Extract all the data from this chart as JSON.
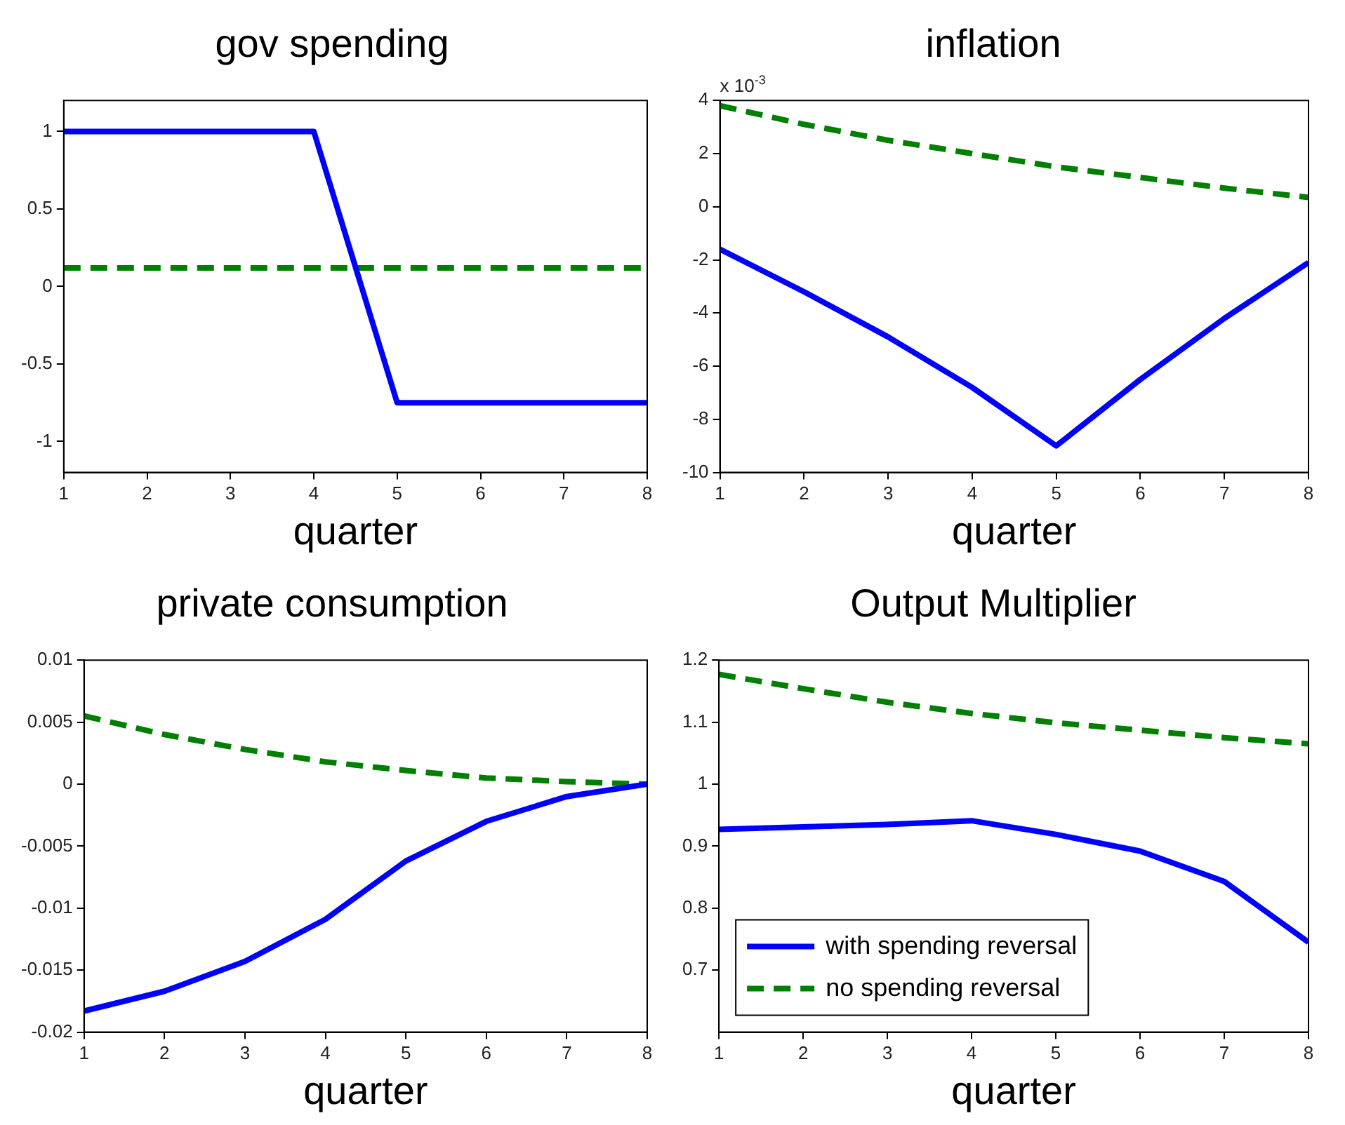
{
  "chart_data": [
    {
      "type": "line",
      "title": "gov spending",
      "xlabel": "quarter",
      "x": [
        1,
        2,
        3,
        4,
        5,
        6,
        7,
        8
      ],
      "xlim": [
        1,
        8
      ],
      "xticks": [
        1,
        2,
        3,
        4,
        5,
        6,
        7,
        8
      ],
      "ylim": [
        -1.2,
        1.2
      ],
      "yticks": [
        -1,
        -0.5,
        0,
        0.5,
        1
      ],
      "marker": "none",
      "legend": false,
      "series": [
        {
          "color": "#0000ff",
          "line_style": "solid",
          "values": [
            1,
            1,
            1,
            1,
            -0.75,
            -0.75,
            -0.75,
            -0.75
          ]
        },
        {
          "color": "#007f00",
          "line_style": "dashed",
          "values": [
            0.12,
            0.12,
            0.12,
            0.12,
            0.12,
            0.12,
            0.12,
            0.12
          ]
        }
      ]
    },
    {
      "type": "line",
      "title": "inflation",
      "xlabel": "quarter",
      "x": [
        1,
        2,
        3,
        4,
        5,
        6,
        7,
        8
      ],
      "xlim": [
        1,
        8
      ],
      "xticks": [
        1,
        2,
        3,
        4,
        5,
        6,
        7,
        8
      ],
      "ylim": [
        -10,
        4
      ],
      "yticks": [
        -10,
        -8,
        -6,
        -4,
        -2,
        0,
        2,
        4
      ],
      "annotations": [
        "x 10$^{-3}$"
      ],
      "marker": "none",
      "legend": false,
      "series": [
        {
          "color": "#0000ff",
          "line_style": "solid",
          "values": [
            -1.6,
            -3.2,
            -4.9,
            -6.8,
            -9.0,
            -6.5,
            -4.2,
            -2.1
          ]
        },
        {
          "color": "#007f00",
          "line_style": "dashed",
          "values": [
            3.8,
            3.1,
            2.5,
            2.0,
            1.5,
            1.1,
            0.7,
            0.35
          ]
        }
      ]
    },
    {
      "type": "line",
      "title": "private consumption",
      "xlabel": "quarter",
      "x": [
        1,
        2,
        3,
        4,
        5,
        6,
        7,
        8
      ],
      "xlim": [
        1,
        8
      ],
      "xticks": [
        1,
        2,
        3,
        4,
        5,
        6,
        7,
        8
      ],
      "ylim": [
        -0.02,
        0.01
      ],
      "yticks": [
        -0.02,
        -0.015,
        -0.01,
        -0.005,
        0,
        0.005,
        0.01
      ],
      "marker": "none",
      "legend": false,
      "series": [
        {
          "color": "#0000ff",
          "line_style": "solid",
          "values": [
            -0.0183,
            -0.0167,
            -0.0143,
            -0.0109,
            -0.0062,
            -0.003,
            -0.001,
            0
          ]
        },
        {
          "color": "#007f00",
          "line_style": "dashed",
          "values": [
            0.0055,
            0.004,
            0.0028,
            0.0018,
            0.0011,
            0.0005,
            0.0002,
            0
          ]
        }
      ]
    },
    {
      "type": "line",
      "title": "Output Multiplier",
      "xlabel": "quarter",
      "x": [
        1,
        2,
        3,
        4,
        5,
        6,
        7,
        8
      ],
      "xlim": [
        1,
        8
      ],
      "xticks": [
        1,
        2,
        3,
        4,
        5,
        6,
        7,
        8
      ],
      "ylim": [
        0.6,
        1.2
      ],
      "yticks": [
        0.7,
        0.8,
        0.9,
        1,
        1.1,
        1.2
      ],
      "marker": "none",
      "legend": "bottom left",
      "series": [
        {
          "name": "with spending reversal",
          "color": "#0000ff",
          "line_style": "solid",
          "values": [
            0.927,
            0.931,
            0.935,
            0.941,
            0.919,
            0.892,
            0.843,
            0.745
          ]
        },
        {
          "name": "no spending reversal",
          "color": "#007f00",
          "line_style": "dashed",
          "values": [
            1.177,
            1.154,
            1.132,
            1.114,
            1.099,
            1.087,
            1.075,
            1.065
          ]
        }
      ]
    }
  ]
}
